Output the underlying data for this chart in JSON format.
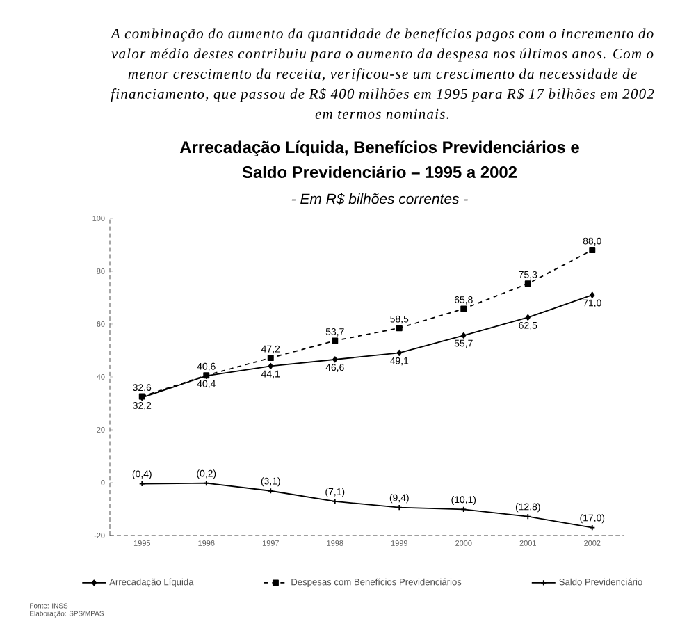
{
  "chart_data": {
    "type": "line",
    "title": "Arrecadação Líquida, Benefícios Previdenciários e Saldo Previdenciário – 1995 a 2002",
    "subtitle": "- Em R$ bilhões correntes -",
    "categories": [
      "1995",
      "1996",
      "1997",
      "1998",
      "1999",
      "2000",
      "2001",
      "2002"
    ],
    "series": [
      {
        "name": "Arrecadação Líquida",
        "color": "#000000",
        "marker": "diamond",
        "line_style": "solid",
        "values": [
          32.2,
          40.4,
          44.1,
          46.6,
          49.1,
          55.7,
          62.5,
          71.0
        ],
        "value_labels": [
          "32,2",
          "40,4",
          "44,1",
          "46,6",
          "49,1",
          "55,7",
          "62,5",
          "71,0"
        ]
      },
      {
        "name": "Despesas com Benefícios Previdenciários",
        "color": "#000000",
        "marker": "square",
        "line_style": "dashed",
        "values": [
          32.6,
          40.6,
          47.2,
          53.7,
          58.5,
          65.8,
          75.3,
          88.0
        ],
        "value_labels": [
          "32,6",
          "40,6",
          "47,2",
          "53,7",
          "58,5",
          "65,8",
          "75,3",
          "88,0"
        ]
      },
      {
        "name": "Saldo Previdenciário",
        "color": "#000000",
        "marker": "cross",
        "line_style": "solid",
        "values": [
          -0.4,
          -0.2,
          -3.1,
          -7.1,
          -9.4,
          -10.1,
          -12.8,
          -17.0
        ],
        "value_labels": [
          "(0,4)",
          "(0,2)",
          "(3,1)",
          "(7,1)",
          "(9,4)",
          "(10,1)",
          "(12,8)",
          "(17,0)"
        ]
      }
    ],
    "ylim": [
      -20,
      100
    ],
    "yticks": [
      -20,
      0,
      20,
      40,
      60,
      80,
      100
    ],
    "legend": "bottom",
    "annotations": [
      "A combinação do aumento da quantidade de benefícios pagos com o incremento do valor médio destes contribuiu para o aumento da despesa nos últimos anos. Com o menor crescimento da receita, verificou-se um crescimento da necessidade de financiamento, que passou de R$ 400 milhões em 1995 para R$ 17 bilhões em 2002 em termos nominais.",
      "Fonte: INSS",
      "Elaboração: SPS/MPAS"
    ]
  }
}
